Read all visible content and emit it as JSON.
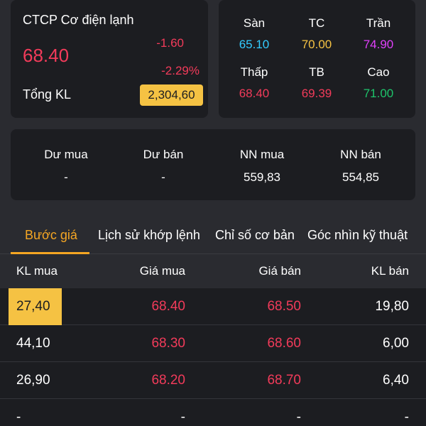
{
  "stock": {
    "name": "CTCP Cơ điện lạnh",
    "price": "68.40",
    "change": "-1.60",
    "change_pct": "-2.29%",
    "volume_label": "Tổng KL",
    "volume_value": "2,304,60"
  },
  "ref_prices": [
    {
      "label": "Sàn",
      "value": "65.10",
      "color": "#33ccff"
    },
    {
      "label": "TC",
      "value": "70.00",
      "color": "#f5c243"
    },
    {
      "label": "Trần",
      "value": "74.90",
      "color": "#e040fb"
    },
    {
      "label": "Thấp",
      "value": "68.40",
      "color": "#f23b5a"
    },
    {
      "label": "TB",
      "value": "69.39",
      "color": "#f23b5a"
    },
    {
      "label": "Cao",
      "value": "71.00",
      "color": "#1ec46b"
    }
  ],
  "summary": [
    {
      "label": "Dư mua",
      "value": "-"
    },
    {
      "label": "Dư bán",
      "value": "-"
    },
    {
      "label": "NN mua",
      "value": "559,83"
    },
    {
      "label": "NN bán",
      "value": "554,85"
    }
  ],
  "tabs": [
    {
      "label": "Bước giá",
      "active": true
    },
    {
      "label": "Lịch sử khớp lệnh",
      "active": false
    },
    {
      "label": "Chỉ số cơ bản",
      "active": false
    },
    {
      "label": "Góc nhìn kỹ thuật",
      "active": false
    }
  ],
  "table": {
    "headers": [
      "KL mua",
      "Giá mua",
      "Giá bán",
      "KL bán"
    ],
    "rows": [
      [
        "27,40",
        "68.40",
        "68.50",
        "19,80"
      ],
      [
        "44,10",
        "68.30",
        "68.60",
        "6,00"
      ],
      [
        "26,90",
        "68.20",
        "68.70",
        "6,40"
      ],
      [
        "-",
        "-",
        "-",
        "-"
      ]
    ]
  },
  "colors": {
    "accent": "#f5a623",
    "down": "#f23b5a",
    "highlight": "#f5c243",
    "background": "#2a2b30",
    "card": "#1c1d21"
  }
}
